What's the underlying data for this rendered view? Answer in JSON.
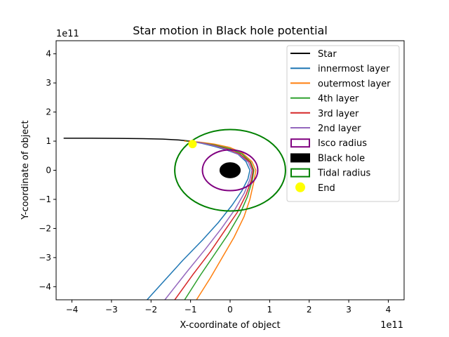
{
  "chart_data": {
    "type": "line",
    "title": "Star motion in Black hole potential",
    "xlabel": "X-coordinate of object",
    "ylabel": "Y-coordinate of object",
    "x_multiplier": "1e11",
    "y_multiplier": "1e11",
    "xlim": [
      -4.4,
      4.4
    ],
    "ylim": [
      -4.45,
      4.45
    ],
    "x_ticks": [
      -4,
      -3,
      -2,
      -1,
      0,
      1,
      2,
      3,
      4
    ],
    "x_tick_labels": [
      "−4",
      "−3",
      "−2",
      "−1",
      "0",
      "1",
      "2",
      "3",
      "4"
    ],
    "y_ticks": [
      -4,
      -3,
      -2,
      -1,
      0,
      1,
      2,
      3,
      4
    ],
    "y_tick_labels": [
      "−4",
      "−3",
      "−2",
      "−1",
      "0",
      "1",
      "2",
      "3",
      "4"
    ],
    "grid": false,
    "legend_position": "top-right",
    "series": [
      {
        "name": "Star",
        "color": "#000000",
        "points": [
          [
            -4.2,
            1.1
          ],
          [
            -3.5,
            1.1
          ],
          [
            -2.8,
            1.095
          ],
          [
            -2.2,
            1.085
          ],
          [
            -1.7,
            1.07
          ],
          [
            -1.3,
            1.04
          ],
          [
            -1.0,
            1.0
          ],
          [
            -0.95,
            0.9
          ]
        ]
      },
      {
        "name": "innermost layer",
        "color": "#1f77b4",
        "points": [
          [
            -1.0,
            1.0
          ],
          [
            -0.7,
            0.92
          ],
          [
            -0.4,
            0.82
          ],
          [
            -0.1,
            0.7
          ],
          [
            0.2,
            0.55
          ],
          [
            0.4,
            0.3
          ],
          [
            0.5,
            0.0
          ],
          [
            0.45,
            -0.3
          ],
          [
            0.3,
            -0.7
          ],
          [
            0.05,
            -1.2
          ],
          [
            -0.3,
            -1.8
          ],
          [
            -0.7,
            -2.4
          ],
          [
            -1.2,
            -3.1
          ],
          [
            -1.6,
            -3.7
          ],
          [
            -2.0,
            -4.3
          ],
          [
            -2.1,
            -4.45
          ]
        ]
      },
      {
        "name": "outermost layer",
        "color": "#ff7f0e",
        "points": [
          [
            -1.15,
            1.0
          ],
          [
            -0.8,
            0.97
          ],
          [
            -0.4,
            0.9
          ],
          [
            0.0,
            0.78
          ],
          [
            0.3,
            0.6
          ],
          [
            0.55,
            0.3
          ],
          [
            0.65,
            0.0
          ],
          [
            0.6,
            -0.4
          ],
          [
            0.5,
            -1.0
          ],
          [
            0.35,
            -1.6
          ],
          [
            0.1,
            -2.3
          ],
          [
            -0.2,
            -3.0
          ],
          [
            -0.5,
            -3.7
          ],
          [
            -0.85,
            -4.45
          ]
        ]
      },
      {
        "name": "4th layer",
        "color": "#2ca02c",
        "points": [
          [
            -1.1,
            1.0
          ],
          [
            -0.75,
            0.95
          ],
          [
            -0.4,
            0.87
          ],
          [
            0.0,
            0.74
          ],
          [
            0.3,
            0.56
          ],
          [
            0.52,
            0.28
          ],
          [
            0.6,
            0.0
          ],
          [
            0.56,
            -0.35
          ],
          [
            0.44,
            -0.9
          ],
          [
            0.25,
            -1.5
          ],
          [
            -0.05,
            -2.2
          ],
          [
            -0.4,
            -2.9
          ],
          [
            -0.75,
            -3.6
          ],
          [
            -1.15,
            -4.45
          ]
        ]
      },
      {
        "name": "3rd layer",
        "color": "#d62728",
        "points": [
          [
            -1.05,
            1.0
          ],
          [
            -0.72,
            0.94
          ],
          [
            -0.4,
            0.85
          ],
          [
            -0.05,
            0.72
          ],
          [
            0.25,
            0.55
          ],
          [
            0.5,
            0.28
          ],
          [
            0.58,
            0.0
          ],
          [
            0.54,
            -0.33
          ],
          [
            0.4,
            -0.85
          ],
          [
            0.18,
            -1.45
          ],
          [
            -0.15,
            -2.1
          ],
          [
            -0.5,
            -2.8
          ],
          [
            -0.95,
            -3.6
          ],
          [
            -1.4,
            -4.45
          ]
        ]
      },
      {
        "name": "2nd layer",
        "color": "#9467bd",
        "points": [
          [
            -1.0,
            1.0
          ],
          [
            -0.7,
            0.93
          ],
          [
            -0.4,
            0.84
          ],
          [
            -0.08,
            0.71
          ],
          [
            0.22,
            0.54
          ],
          [
            0.46,
            0.28
          ],
          [
            0.55,
            0.0
          ],
          [
            0.5,
            -0.32
          ],
          [
            0.36,
            -0.78
          ],
          [
            0.12,
            -1.35
          ],
          [
            -0.22,
            -2.0
          ],
          [
            -0.62,
            -2.7
          ],
          [
            -1.1,
            -3.5
          ],
          [
            -1.65,
            -4.45
          ]
        ]
      }
    ],
    "shapes": [
      {
        "name": "Isco radius",
        "kind": "circle",
        "center": [
          0,
          0
        ],
        "radius": 0.7,
        "edge_color": "#800080",
        "fill": "none"
      },
      {
        "name": "Black hole",
        "kind": "circle",
        "center": [
          0,
          0
        ],
        "radius": 0.25,
        "edge_color": "#000000",
        "fill": "#000000"
      },
      {
        "name": "Tidal radius",
        "kind": "circle",
        "center": [
          0,
          0
        ],
        "radius": 1.4,
        "edge_color": "#008000",
        "fill": "none"
      }
    ],
    "end_point": {
      "name": "End",
      "x": -0.95,
      "y": 0.9,
      "color": "#ffff00"
    },
    "legend": [
      {
        "label": "Star",
        "kind": "line",
        "color": "#000000"
      },
      {
        "label": "innermost layer",
        "kind": "line",
        "color": "#1f77b4"
      },
      {
        "label": "outermost layer",
        "kind": "line",
        "color": "#ff7f0e"
      },
      {
        "label": "4th layer",
        "kind": "line",
        "color": "#2ca02c"
      },
      {
        "label": "3rd layer",
        "kind": "line",
        "color": "#d62728"
      },
      {
        "label": "2nd layer",
        "kind": "line",
        "color": "#9467bd"
      },
      {
        "label": "Isco radius",
        "kind": "patch-outline",
        "color": "#800080"
      },
      {
        "label": "Black hole",
        "kind": "patch-filled",
        "color": "#000000"
      },
      {
        "label": "Tidal radius",
        "kind": "patch-outline",
        "color": "#008000"
      },
      {
        "label": "End",
        "kind": "marker",
        "color": "#ffff00"
      }
    ]
  }
}
